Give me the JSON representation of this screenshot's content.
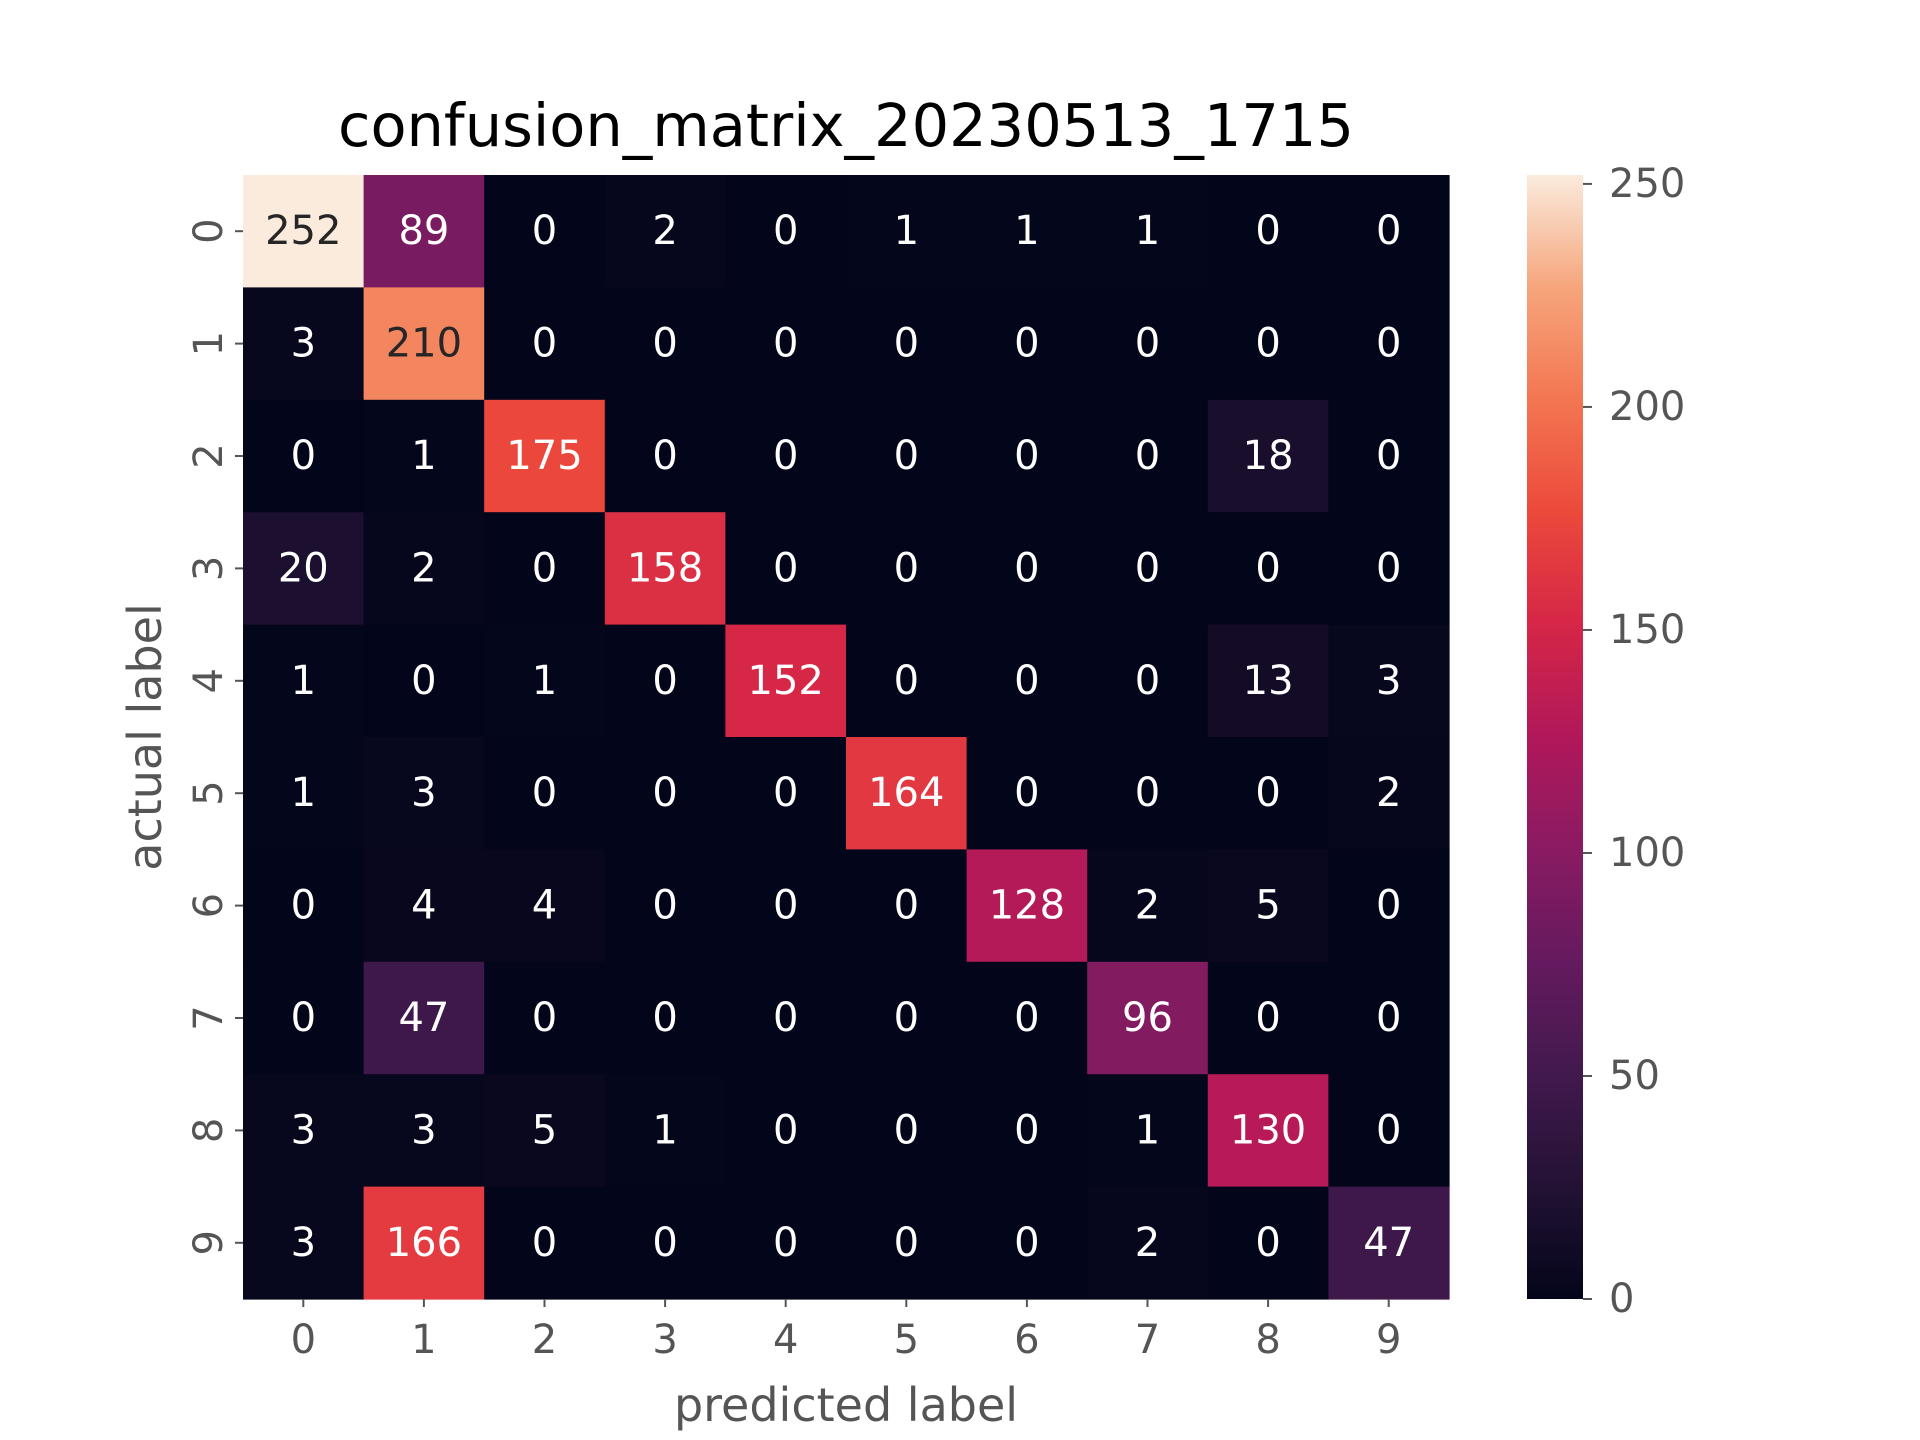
{
  "chart_data": {
    "type": "heatmap",
    "title": "confusion_matrix_20230513_1715",
    "xlabel": "predicted label",
    "ylabel": "actual label",
    "x_categories": [
      "0",
      "1",
      "2",
      "3",
      "4",
      "5",
      "6",
      "7",
      "8",
      "9"
    ],
    "y_categories": [
      "0",
      "1",
      "2",
      "3",
      "4",
      "5",
      "6",
      "7",
      "8",
      "9"
    ],
    "matrix": [
      [
        252,
        89,
        0,
        2,
        0,
        1,
        1,
        1,
        0,
        0
      ],
      [
        3,
        210,
        0,
        0,
        0,
        0,
        0,
        0,
        0,
        0
      ],
      [
        0,
        1,
        175,
        0,
        0,
        0,
        0,
        0,
        18,
        0
      ],
      [
        20,
        2,
        0,
        158,
        0,
        0,
        0,
        0,
        0,
        0
      ],
      [
        1,
        0,
        1,
        0,
        152,
        0,
        0,
        0,
        13,
        3
      ],
      [
        1,
        3,
        0,
        0,
        0,
        164,
        0,
        0,
        0,
        2
      ],
      [
        0,
        4,
        4,
        0,
        0,
        0,
        128,
        2,
        5,
        0
      ],
      [
        0,
        47,
        0,
        0,
        0,
        0,
        0,
        96,
        0,
        0
      ],
      [
        3,
        3,
        5,
        1,
        0,
        0,
        0,
        1,
        130,
        0
      ],
      [
        3,
        166,
        0,
        0,
        0,
        0,
        0,
        2,
        0,
        47
      ]
    ],
    "colorscale": "rocket",
    "colorbar": {
      "range": [
        0,
        252
      ],
      "ticks": [
        0,
        50,
        100,
        150,
        200,
        250
      ]
    },
    "grid": false
  }
}
